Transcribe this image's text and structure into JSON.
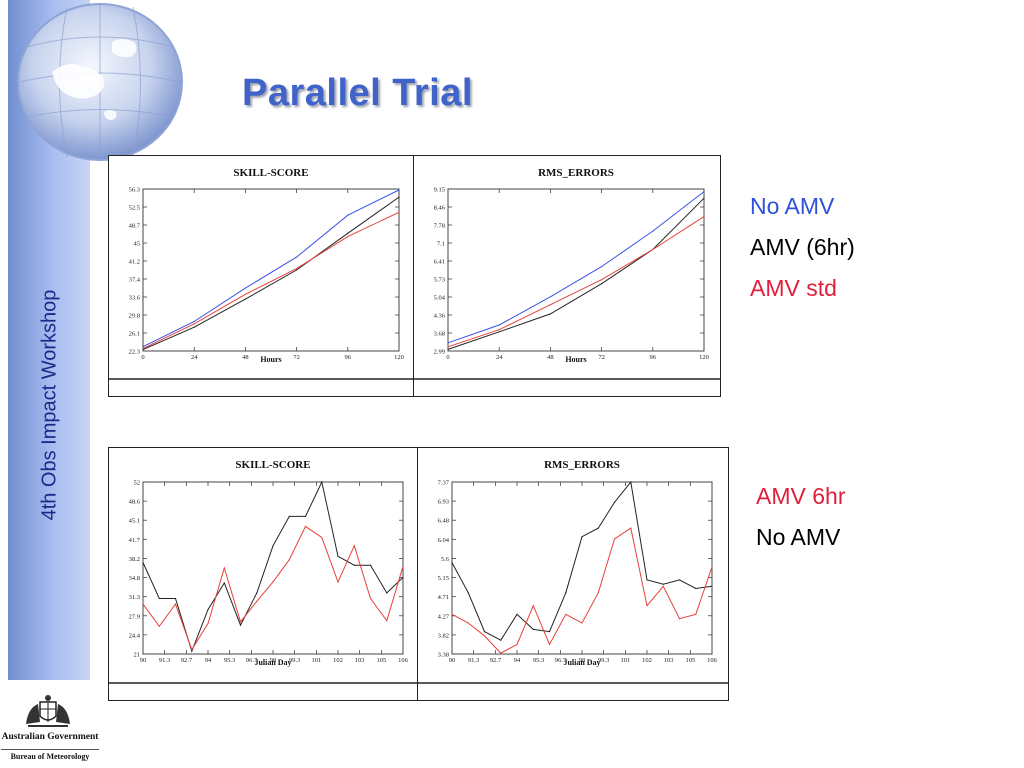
{
  "slide": {
    "title": "Parallel Trial",
    "sidebar_text": "4th Obs Impact Workshop",
    "logo": {
      "line1": "Australian Government",
      "line2": "Bureau of Meteorology",
      "icon": "coat-of-arms-icon"
    },
    "globe_icon": "globe-icon"
  },
  "colors": {
    "blue": "#3a50e8",
    "black": "#222222",
    "red": "#e8403a",
    "title": "#3f63c8"
  },
  "legend_top": [
    {
      "text": "No AMV",
      "color": "#3050d8"
    },
    {
      "text": "AMV (6hr)",
      "color": "#000000"
    },
    {
      "text": "AMV std",
      "color": "#e0203a"
    }
  ],
  "legend_bottom": [
    {
      "text": "AMV 6hr",
      "color": "#e0203a"
    },
    {
      "text": "No AMV",
      "color": "#000000"
    }
  ],
  "chart_data": [
    {
      "type": "line",
      "title": "SKILL-SCORE",
      "xlabel": "Hours",
      "ylabel": "",
      "x": [
        0,
        24,
        48,
        72,
        96,
        120
      ],
      "xticks": [
        "0",
        "24",
        "48",
        "72",
        "96",
        "120"
      ],
      "yticks": [
        "22.3",
        "26.1",
        "29.8",
        "33.6",
        "37.4",
        "41.2",
        "45",
        "48.7",
        "52.5",
        "56.3"
      ],
      "xlim": [
        0,
        120
      ],
      "ylim": [
        22.3,
        56.3
      ],
      "series": [
        {
          "color": "#3a50e8",
          "values": [
            23.2,
            28.5,
            35.5,
            42.0,
            50.8,
            56.1
          ]
        },
        {
          "color": "#222222",
          "values": [
            22.6,
            27.3,
            33.2,
            39.3,
            47.0,
            54.6
          ]
        },
        {
          "color": "#e8403a",
          "values": [
            22.8,
            28.0,
            34.2,
            39.6,
            46.3,
            51.4
          ]
        }
      ]
    },
    {
      "type": "line",
      "title": "RMS_ERRORS",
      "xlabel": "Hours",
      "ylabel": "",
      "x": [
        0,
        24,
        48,
        72,
        96,
        120
      ],
      "xticks": [
        "0",
        "24",
        "48",
        "72",
        "96",
        "120"
      ],
      "yticks": [
        "2.99",
        "3.68",
        "4.36",
        "5.04",
        "5.73",
        "6.41",
        "7.1",
        "7.78",
        "8.46",
        "9.15"
      ],
      "xlim": [
        0,
        120
      ],
      "ylim": [
        2.99,
        9.15
      ],
      "series": [
        {
          "color": "#3a50e8",
          "values": [
            3.3,
            3.98,
            5.05,
            6.2,
            7.55,
            9.05
          ]
        },
        {
          "color": "#222222",
          "values": [
            3.05,
            3.72,
            4.4,
            5.55,
            6.85,
            8.8
          ]
        },
        {
          "color": "#e8403a",
          "values": [
            3.15,
            3.8,
            4.75,
            5.7,
            6.85,
            8.1
          ]
        }
      ]
    },
    {
      "type": "line",
      "title": "SKILL-SCORE",
      "xlabel": "Julian Day",
      "ylabel": "",
      "x": [
        90,
        91,
        92,
        93,
        94,
        95,
        96,
        97,
        98,
        99,
        100,
        101,
        102,
        103,
        104,
        105,
        106
      ],
      "xticks": [
        "90",
        "91.3",
        "92.7",
        "94",
        "95.3",
        "96.7",
        "98",
        "99.3",
        "101",
        "102",
        "103",
        "105",
        "106"
      ],
      "xtick_values": [
        90,
        91.33,
        92.67,
        94,
        95.33,
        96.67,
        98,
        99.33,
        100.67,
        102,
        103.33,
        104.67,
        106
      ],
      "yticks": [
        "21",
        "24.4",
        "27.9",
        "31.3",
        "34.8",
        "38.2",
        "41.7",
        "45.1",
        "48.6",
        "52"
      ],
      "xlim": [
        90,
        106
      ],
      "ylim": [
        21,
        52
      ],
      "series": [
        {
          "color": "#222222",
          "values": [
            37.5,
            31.0,
            31.0,
            21.5,
            29.0,
            33.8,
            26.2,
            32.0,
            40.5,
            45.8,
            45.8,
            52.0,
            38.6,
            37.0,
            37.0,
            32.0,
            34.8
          ]
        },
        {
          "color": "#e8403a",
          "values": [
            30.0,
            26.0,
            30.0,
            21.8,
            26.5,
            36.5,
            26.8,
            30.5,
            34.0,
            38.0,
            44.0,
            42.0,
            34.0,
            40.5,
            31.0,
            27.0,
            36.8
          ]
        }
      ]
    },
    {
      "type": "line",
      "title": "RMS_ERRORS",
      "xlabel": "Julian Day",
      "ylabel": "",
      "x": [
        90,
        91,
        92,
        93,
        94,
        95,
        96,
        97,
        98,
        99,
        100,
        101,
        102,
        103,
        104,
        105,
        106
      ],
      "xticks": [
        "90",
        "91.3",
        "92.7",
        "94",
        "95.3",
        "96.7",
        "98",
        "99.3",
        "101",
        "102",
        "103",
        "105",
        "106"
      ],
      "xtick_values": [
        90,
        91.33,
        92.67,
        94,
        95.33,
        96.67,
        98,
        99.33,
        100.67,
        102,
        103.33,
        104.67,
        106
      ],
      "yticks": [
        "3.38",
        "3.82",
        "4.27",
        "4.71",
        "5.15",
        "5.6",
        "6.04",
        "6.48",
        "6.93",
        "7.37"
      ],
      "xlim": [
        90,
        106
      ],
      "ylim": [
        3.38,
        7.37
      ],
      "series": [
        {
          "color": "#222222",
          "values": [
            5.5,
            4.8,
            3.9,
            3.7,
            4.3,
            3.95,
            3.9,
            4.8,
            6.1,
            6.3,
            6.9,
            7.37,
            5.1,
            5.0,
            5.1,
            4.9,
            4.95
          ]
        },
        {
          "color": "#e8403a",
          "values": [
            4.3,
            4.1,
            3.8,
            3.4,
            3.6,
            4.5,
            3.6,
            4.3,
            4.1,
            4.8,
            6.05,
            6.3,
            4.5,
            4.95,
            4.2,
            4.3,
            5.4
          ]
        }
      ]
    }
  ]
}
